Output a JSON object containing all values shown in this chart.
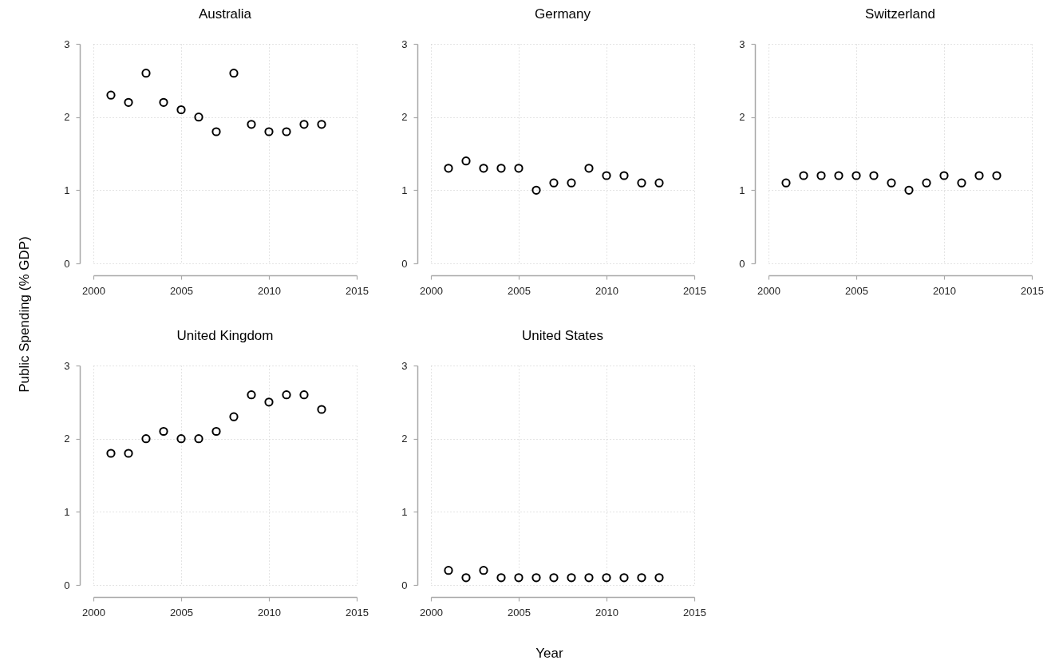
{
  "chart_data": [
    {
      "type": "scatter",
      "title": "Australia",
      "ylabel": "Public Spending (% GDP)",
      "x": [
        2001,
        2002,
        2003,
        2004,
        2005,
        2006,
        2007,
        2008,
        2009,
        2010,
        2011,
        2012,
        2013
      ],
      "values": [
        2.3,
        2.2,
        2.6,
        2.2,
        2.1,
        2.0,
        1.8,
        2.6,
        1.9,
        1.8,
        1.8,
        1.9,
        1.9
      ],
      "color": "#000000",
      "marker": "circle",
      "xlim": [
        2000,
        2015
      ],
      "xticks": [
        2000,
        2005,
        2010,
        2015
      ],
      "ylim": [
        0,
        3
      ],
      "yticks": [
        0,
        1,
        2,
        3
      ],
      "grid": true
    },
    {
      "type": "scatter",
      "title": "Germany",
      "x": [
        2001,
        2002,
        2003,
        2004,
        2005,
        2006,
        2007,
        2008,
        2009,
        2010,
        2011,
        2012,
        2013
      ],
      "values": [
        1.3,
        1.4,
        1.3,
        1.3,
        1.3,
        1.0,
        1.1,
        1.1,
        1.3,
        1.2,
        1.2,
        1.1,
        1.1
      ],
      "color": "#000000",
      "marker": "circle",
      "xlim": [
        2000,
        2015
      ],
      "xticks": [
        2000,
        2005,
        2010,
        2015
      ],
      "ylim": [
        0,
        3
      ],
      "yticks": [
        0,
        1,
        2,
        3
      ],
      "grid": true
    },
    {
      "type": "scatter",
      "title": "Switzerland",
      "x": [
        2001,
        2002,
        2003,
        2004,
        2005,
        2006,
        2007,
        2008,
        2009,
        2010,
        2011,
        2012,
        2013
      ],
      "values": [
        1.1,
        1.2,
        1.2,
        1.2,
        1.2,
        1.2,
        1.1,
        1.0,
        1.1,
        1.2,
        1.1,
        1.2,
        1.2
      ],
      "color": "#000000",
      "marker": "circle",
      "xlim": [
        2000,
        2015
      ],
      "xticks": [
        2000,
        2005,
        2010,
        2015
      ],
      "ylim": [
        0,
        3
      ],
      "yticks": [
        0,
        1,
        2,
        3
      ],
      "grid": true
    },
    {
      "type": "scatter",
      "title": "United Kingdom",
      "x": [
        2001,
        2002,
        2003,
        2004,
        2005,
        2006,
        2007,
        2008,
        2009,
        2010,
        2011,
        2012,
        2013
      ],
      "values": [
        1.8,
        1.8,
        2.0,
        2.1,
        2.0,
        2.0,
        2.1,
        2.3,
        2.6,
        2.5,
        2.6,
        2.6,
        2.4
      ],
      "color": "#000000",
      "marker": "circle",
      "xlim": [
        2000,
        2015
      ],
      "xticks": [
        2000,
        2005,
        2010,
        2015
      ],
      "ylim": [
        0,
        3
      ],
      "yticks": [
        0,
        1,
        2,
        3
      ],
      "grid": true
    },
    {
      "type": "scatter",
      "title": "United States",
      "xlabel": "Year",
      "x": [
        2001,
        2002,
        2003,
        2004,
        2005,
        2006,
        2007,
        2008,
        2009,
        2010,
        2011,
        2012,
        2013
      ],
      "values": [
        0.2,
        0.1,
        0.2,
        0.1,
        0.1,
        0.1,
        0.1,
        0.1,
        0.1,
        0.1,
        0.1,
        0.1,
        0.1
      ],
      "color": "#000000",
      "marker": "circle",
      "xlim": [
        2000,
        2015
      ],
      "xticks": [
        2000,
        2005,
        2010,
        2015
      ],
      "ylim": [
        0,
        3
      ],
      "yticks": [
        0,
        1,
        2,
        3
      ],
      "grid": true
    }
  ]
}
